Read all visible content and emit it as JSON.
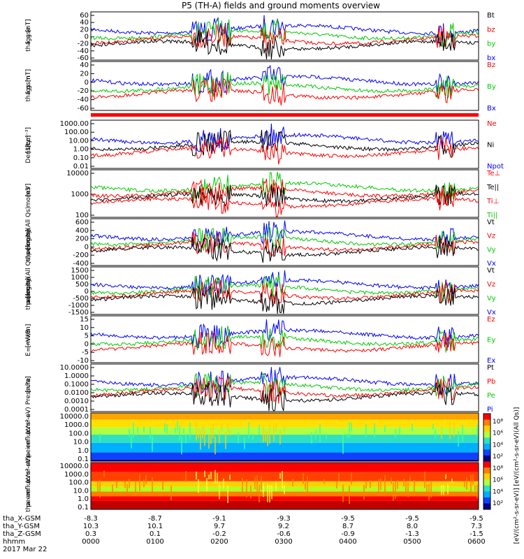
{
  "chart_data": {
    "type": "line",
    "title": "P5 (TH-A) fields and ground moments overview",
    "panels": [
      {
        "id": "fgs",
        "ylabel_lines": [
          "tha",
          "fgs",
          "gse",
          "[nT]"
        ],
        "ticks": [
          "60",
          "40",
          "20",
          "0",
          "-20",
          "-40",
          "-60"
        ],
        "ylim": [
          -60,
          60
        ],
        "legend": [
          {
            "name": "Bt",
            "color": "#000000"
          },
          {
            "name": "bz",
            "color": "#ff0000"
          },
          {
            "name": "by",
            "color": "#00cc00"
          },
          {
            "name": "bx",
            "color": "#0000ff"
          }
        ]
      },
      {
        "id": "fgs_gsm",
        "ylabel_lines": [
          "tha",
          "fgs",
          "gsm",
          "[nT]"
        ],
        "ticks": [
          "40",
          "20",
          "0",
          "-20",
          "-40",
          "-60"
        ],
        "ylim": [
          -70,
          45
        ],
        "legend": [
          {
            "name": "Bz",
            "color": "#ff0000"
          },
          {
            "name": "By",
            "color": "#00cc00"
          },
          {
            "name": "Bx",
            "color": "#0000ff"
          }
        ]
      },
      {
        "id": "density",
        "ylabel_lines": [
          "Density",
          "[1/cc]",
          "[cm⁻³]"
        ],
        "ticks": [
          "1000.00",
          "100.00",
          "10.00",
          "1.00",
          "0.10",
          "0.01"
        ],
        "log": true,
        "legend": [
          {
            "name": "Ne",
            "color": "#ff0000"
          },
          {
            "name": "Ni",
            "color": "#000000"
          },
          {
            "name": "Npot",
            "color": "#0000ff"
          }
        ]
      },
      {
        "id": "temp",
        "ylabel_lines": [
          "mom3",
          "[eV]"
        ],
        "ticks": [
          "10000",
          "1000",
          "100"
        ],
        "log": true,
        "legend": [
          {
            "name": "Te⊥",
            "color": "#ff0000"
          },
          {
            "name": "Te||",
            "color": "#000000"
          },
          {
            "name": "Ti⊥",
            "color": "#ff0000"
          },
          {
            "name": "Ti||",
            "color": "#00cc00"
          }
        ]
      },
      {
        "id": "peir_v",
        "ylabel_lines": [
          "tha",
          "peir",
          "velocity",
          "gsm",
          "[km/s](All Qs)"
        ],
        "ticks": [
          "600",
          "400",
          "200",
          "0",
          "-200",
          "-400"
        ],
        "ylim": [
          -420,
          620
        ],
        "legend": [
          {
            "name": "Vt",
            "color": "#000000"
          },
          {
            "name": "Vz",
            "color": "#ff0000"
          },
          {
            "name": "Vy",
            "color": "#00cc00"
          },
          {
            "name": "Vx",
            "color": "#0000ff"
          }
        ]
      },
      {
        "id": "peer_v",
        "ylabel_lines": [
          "tha",
          "peer",
          "velocity",
          "gsm",
          "[km/s](All Qs)"
        ],
        "ticks": [
          "1500",
          "1000",
          "500",
          "0",
          "-500",
          "-1000",
          "-1500"
        ],
        "ylim": [
          -1600,
          1600
        ],
        "legend": [
          {
            "name": "Vt",
            "color": "#000000"
          },
          {
            "name": "Vz",
            "color": "#ff0000"
          },
          {
            "name": "Vy",
            "color": "#00cc00"
          },
          {
            "name": "Vx",
            "color": "#0000ff"
          }
        ]
      },
      {
        "id": "efield",
        "ylabel_lines": [
          "E=−VxB",
          "[mV/m]"
        ],
        "ticks": [
          "15",
          "10",
          "5",
          "0",
          "-5",
          "-10"
        ],
        "ylim": [
          -12,
          17
        ],
        "legend": [
          {
            "name": "Ez",
            "color": "#ff0000"
          },
          {
            "name": "Ey",
            "color": "#00cc00"
          },
          {
            "name": "Ex",
            "color": "#0000ff"
          }
        ]
      },
      {
        "id": "pressure",
        "ylabel_lines": [
          "Pressure",
          "[nPa]"
        ],
        "ticks": [
          "10.0000",
          "1.0000",
          "0.1000",
          "0.0100",
          "0.0010",
          "0.0001"
        ],
        "log": true,
        "legend": [
          {
            "name": "Pt",
            "color": "#000000"
          },
          {
            "name": "Pb",
            "color": "#ff0000"
          },
          {
            "name": "Pe",
            "color": "#00cc00"
          },
          {
            "name": "Pi",
            "color": "#0000ff"
          }
        ]
      },
      {
        "id": "peir_en",
        "ylabel_lines": [
          "tha",
          "peir",
          "en",
          "eflux",
          "eV",
          "(cm²-s-",
          "sr-eV)"
        ],
        "ticks": [
          "10000.0",
          "1000.0",
          "100.0",
          "10.0",
          "1.0",
          "0.1"
        ],
        "spectrogram": true
      },
      {
        "id": "peer_en",
        "ylabel_lines": [
          "tha",
          "peer",
          "en",
          "eflux",
          "eV",
          "(cm²-s-",
          "sr-eV)"
        ],
        "ticks": [
          "10000.0",
          "1000.0",
          "100.0",
          "10.0",
          "1.0",
          "0.1"
        ],
        "spectrogram": true
      }
    ],
    "colorbar": {
      "ticks": [
        "10⁸",
        "10⁶",
        "10⁴",
        "10²",
        "10⁸",
        "10⁶",
        "10⁴",
        "10²"
      ],
      "label": "[eV/(cm²-s-sr-eV)] [eV/(cm²-s-sr-eV)(All Qs)]"
    },
    "x_axis": {
      "rows": [
        {
          "label": "tha_X-GSM",
          "values": [
            "-8.3",
            "-8.7",
            "-9.1",
            "-9.3",
            "-9.5",
            "-9.5",
            "-9.5"
          ]
        },
        {
          "label": "tha_Y-GSM",
          "values": [
            "10.3",
            "10.1",
            "9.7",
            "9.2",
            "8.7",
            "8.0",
            "7.3"
          ]
        },
        {
          "label": "tha_Z-GSM",
          "values": [
            "0.3",
            "0.1",
            "-0.2",
            "-0.6",
            "-0.9",
            "-1.3",
            "-1.5"
          ]
        },
        {
          "label": "hhmm",
          "values": [
            "0000",
            "0100",
            "0200",
            "0300",
            "0400",
            "0500",
            "0600"
          ]
        }
      ],
      "date": "2017 Mar 22"
    }
  }
}
